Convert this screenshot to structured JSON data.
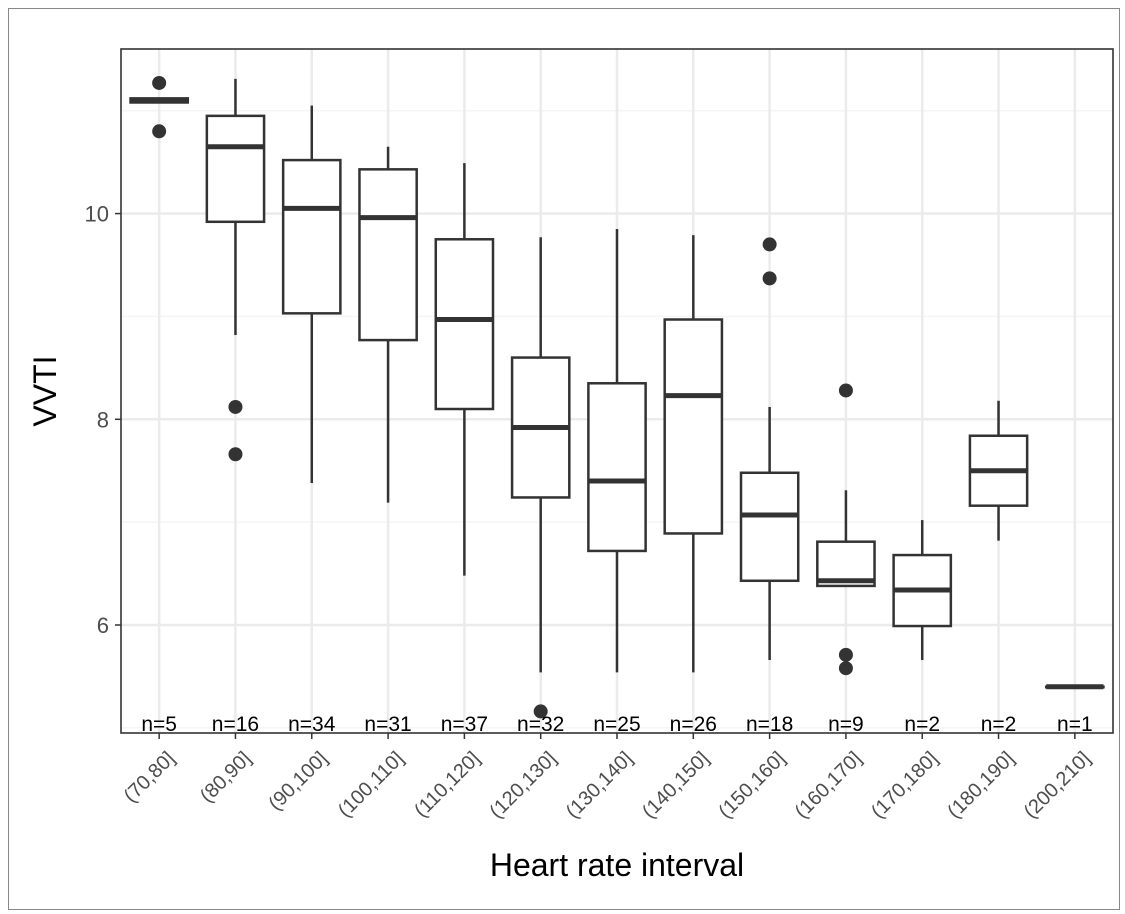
{
  "chart_data": {
    "type": "box",
    "xlabel": "Heart rate interval",
    "ylabel": "VVTI",
    "ylim": [
      4.95,
      11.6
    ],
    "yticks": [
      6,
      8,
      10
    ],
    "grid": true,
    "legend": "none",
    "colors": {
      "box_stroke": "#333333",
      "box_fill": "#ffffff",
      "grid_major": "#ebebeb",
      "grid_minor": "#f5f5f5",
      "panel_border": "#333333"
    },
    "categories": [
      "(70,80]",
      "(80,90]",
      "(90,100]",
      "(100,110]",
      "(110,120]",
      "(120,130]",
      "(130,140]",
      "(140,150]",
      "(150,160]",
      "(160,170]",
      "(170,180]",
      "(180,190]",
      "(200,210]"
    ],
    "count_labels": [
      "n=5",
      "n=16",
      "n=34",
      "n=31",
      "n=37",
      "n=32",
      "n=25",
      "n=26",
      "n=18",
      "n=9",
      "n=2",
      "n=2",
      "n=1"
    ],
    "boxes": [
      {
        "whisker_low": 11.08,
        "q1": 11.08,
        "median": 11.1,
        "q3": 11.12,
        "whisker_high": 11.12,
        "outliers": [
          11.27,
          10.8
        ]
      },
      {
        "whisker_low": 8.82,
        "q1": 9.92,
        "median": 10.65,
        "q3": 10.95,
        "whisker_high": 11.31,
        "outliers": [
          8.12,
          7.66
        ]
      },
      {
        "whisker_low": 7.38,
        "q1": 9.03,
        "median": 10.05,
        "q3": 10.52,
        "whisker_high": 11.05,
        "outliers": []
      },
      {
        "whisker_low": 7.19,
        "q1": 8.77,
        "median": 9.96,
        "q3": 10.43,
        "whisker_high": 10.65,
        "outliers": []
      },
      {
        "whisker_low": 6.48,
        "q1": 8.1,
        "median": 8.97,
        "q3": 9.75,
        "whisker_high": 10.49,
        "outliers": []
      },
      {
        "whisker_low": 5.54,
        "q1": 7.24,
        "median": 7.92,
        "q3": 8.6,
        "whisker_high": 9.77,
        "outliers": [
          5.16
        ]
      },
      {
        "whisker_low": 5.54,
        "q1": 6.72,
        "median": 7.4,
        "q3": 8.35,
        "whisker_high": 9.85,
        "outliers": []
      },
      {
        "whisker_low": 5.54,
        "q1": 6.89,
        "median": 8.23,
        "q3": 8.97,
        "whisker_high": 9.79,
        "outliers": []
      },
      {
        "whisker_low": 5.66,
        "q1": 6.43,
        "median": 7.07,
        "q3": 7.48,
        "whisker_high": 8.12,
        "outliers": [
          9.7,
          9.37
        ]
      },
      {
        "whisker_low": 6.37,
        "q1": 6.38,
        "median": 6.43,
        "q3": 6.81,
        "whisker_high": 7.31,
        "outliers": [
          8.28,
          5.71,
          5.58
        ]
      },
      {
        "whisker_low": 5.66,
        "q1": 5.99,
        "median": 6.34,
        "q3": 6.68,
        "whisker_high": 7.02,
        "outliers": []
      },
      {
        "whisker_low": 6.82,
        "q1": 7.16,
        "median": 7.5,
        "q3": 7.84,
        "whisker_high": 8.18,
        "outliers": []
      },
      {
        "whisker_low": 5.4,
        "q1": 5.4,
        "median": 5.4,
        "q3": 5.4,
        "whisker_high": 5.4,
        "outliers": []
      }
    ]
  }
}
